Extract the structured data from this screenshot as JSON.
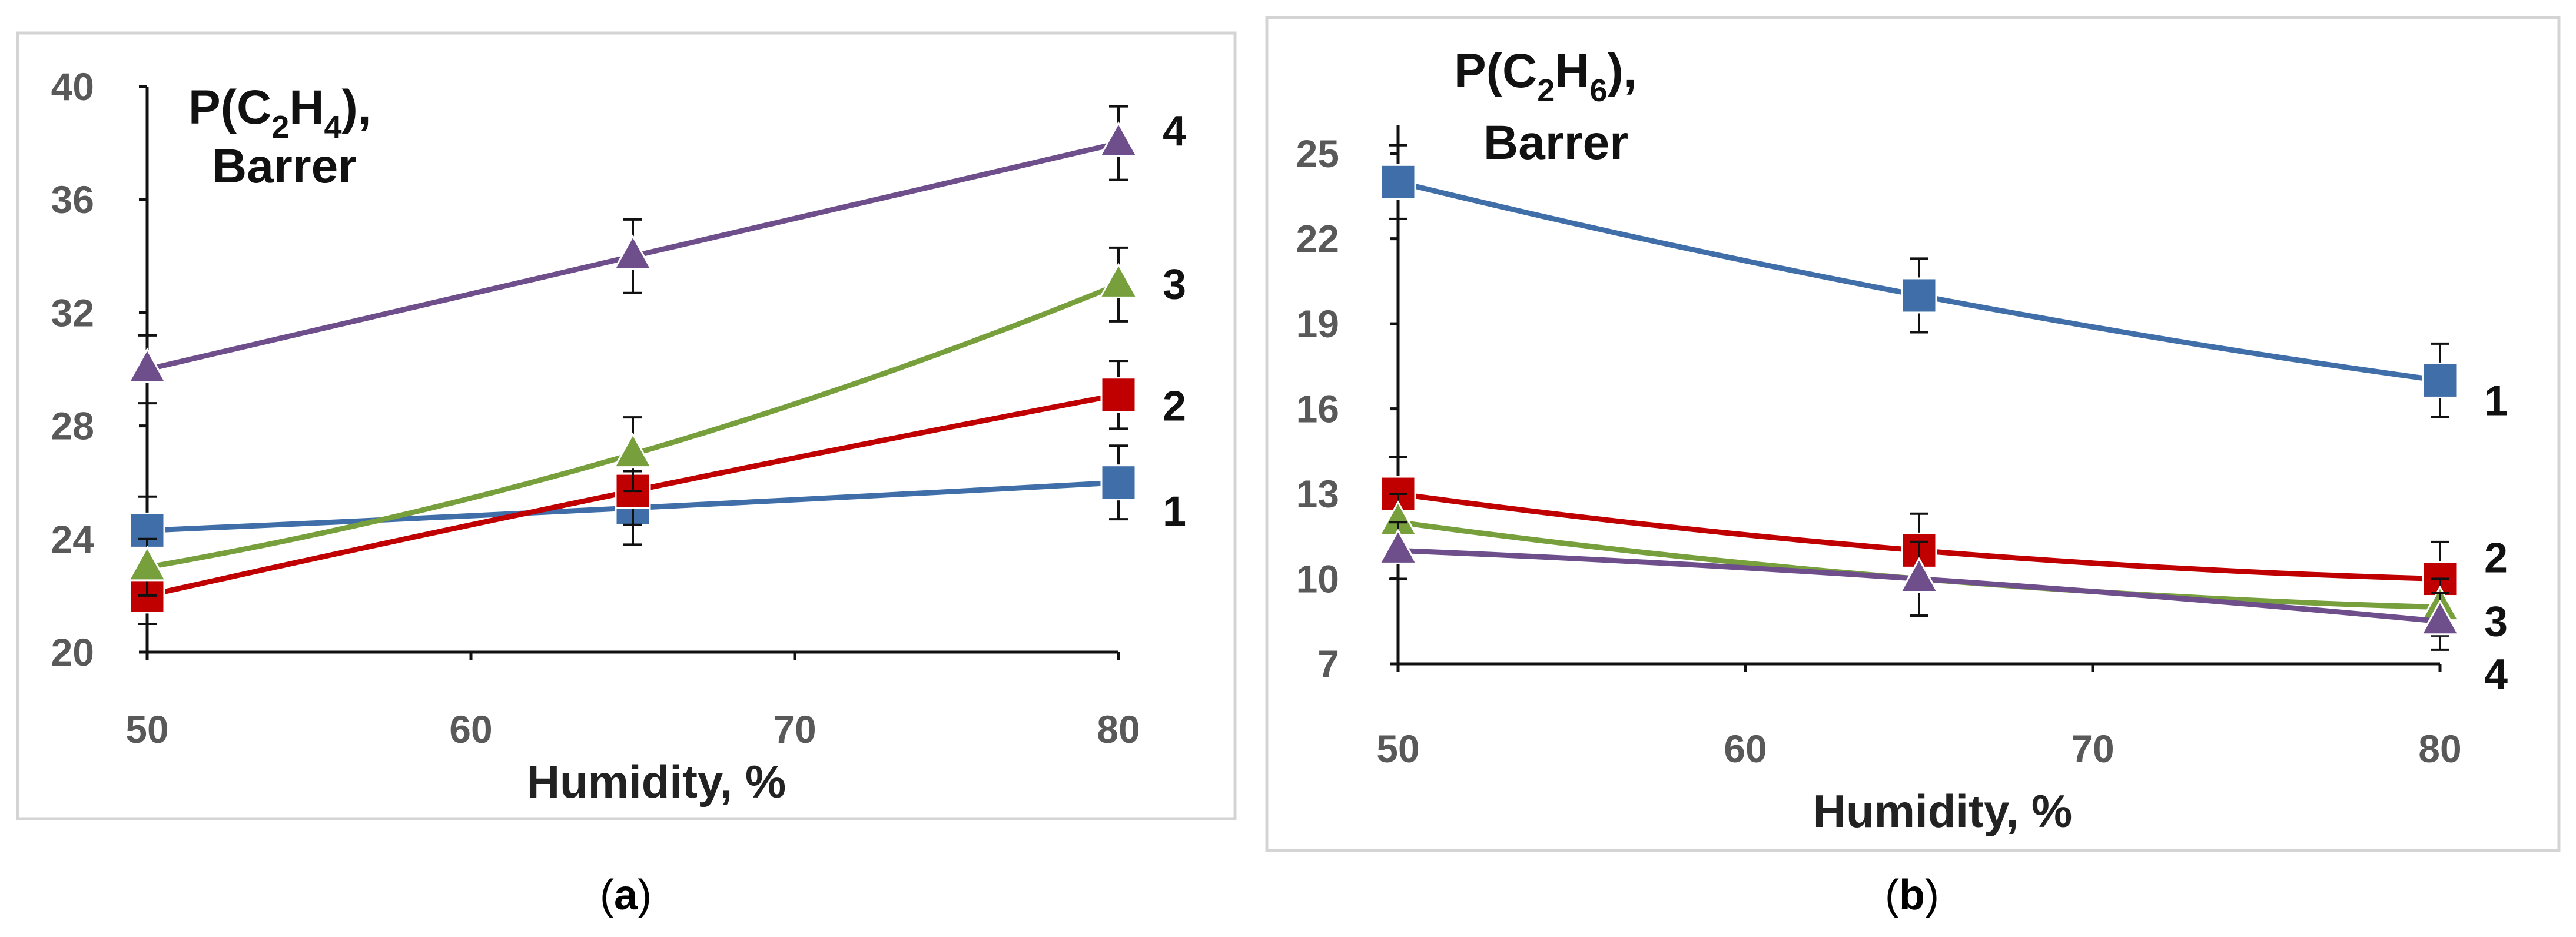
{
  "chart_data": [
    {
      "type": "line",
      "panel": "a",
      "caption": {
        "open": "(",
        "letter": "a",
        "close": ")"
      },
      "ylabel_line1": {
        "p": "P(C",
        "s1": "2",
        "mid": "H",
        "s2": "4",
        "end": "),",
        "sub1": "2",
        "sub2": "4"
      },
      "ylabel_line2": "Barrer",
      "xlabel": "Humidity, %",
      "x": [
        50,
        65,
        80
      ],
      "xticks": [
        "50",
        "60",
        "70",
        "80"
      ],
      "xtick_values": [
        50,
        60,
        70,
        80
      ],
      "xlim": [
        50,
        80
      ],
      "yticks": [
        "20",
        "24",
        "28",
        "32",
        "36",
        "40"
      ],
      "ytick_values": [
        20,
        24,
        28,
        32,
        36,
        40
      ],
      "ylim": [
        20,
        40
      ],
      "series": [
        {
          "name": "1",
          "marker": "square",
          "color": "#3F6EA8",
          "values": [
            24.3,
            25.1,
            26.0
          ],
          "errors": [
            1.2,
            1.3,
            1.3
          ]
        },
        {
          "name": "2",
          "marker": "square",
          "color": "#C00000",
          "values": [
            22.0,
            25.7,
            29.1
          ],
          "errors": [
            1.0,
            1.2,
            1.2
          ]
        },
        {
          "name": "3",
          "marker": "triangle",
          "color": "#77A03C",
          "values": [
            23.0,
            27.0,
            33.0
          ],
          "errors": [
            1.0,
            1.3,
            1.3
          ]
        },
        {
          "name": "4",
          "marker": "triangle",
          "color": "#6E4F8C",
          "values": [
            30.0,
            34.0,
            38.0
          ],
          "errors": [
            1.2,
            1.3,
            1.3
          ]
        }
      ]
    },
    {
      "type": "line",
      "panel": "b",
      "caption": {
        "open": "(",
        "letter": "b",
        "close": ")"
      },
      "ylabel_line1": {
        "p": "P(C",
        "s1": "2",
        "mid": "H",
        "s2": "6",
        "end": "),",
        "sub1": "2",
        "sub2": "6"
      },
      "ylabel_line2": "Barrer",
      "xlabel": "Humidity, %",
      "x": [
        50,
        65,
        80
      ],
      "xticks": [
        "50",
        "60",
        "70",
        "80"
      ],
      "xtick_values": [
        50,
        60,
        70,
        80
      ],
      "xlim": [
        50,
        80
      ],
      "yticks": [
        "7",
        "10",
        "13",
        "16",
        "19",
        "22",
        "25"
      ],
      "ytick_values": [
        7,
        10,
        13,
        16,
        19,
        22,
        25
      ],
      "ylim": [
        7,
        26
      ],
      "series": [
        {
          "name": "1",
          "marker": "square",
          "color": "#3F6EA8",
          "values": [
            24.0,
            20.0,
            17.0
          ],
          "errors": [
            1.3,
            1.3,
            1.3
          ]
        },
        {
          "name": "2",
          "marker": "square",
          "color": "#C00000",
          "values": [
            13.0,
            11.0,
            10.0
          ],
          "errors": [
            1.3,
            1.3,
            1.3
          ]
        },
        {
          "name": "3",
          "marker": "triangle",
          "color": "#77A03C",
          "values": [
            12.0,
            10.0,
            9.0
          ],
          "errors": [
            1.0,
            1.3,
            1.0
          ]
        },
        {
          "name": "4",
          "marker": "triangle",
          "color": "#6E4F8C",
          "values": [
            11.0,
            10.0,
            8.5
          ],
          "errors": [
            1.0,
            1.3,
            1.0
          ]
        }
      ]
    }
  ]
}
